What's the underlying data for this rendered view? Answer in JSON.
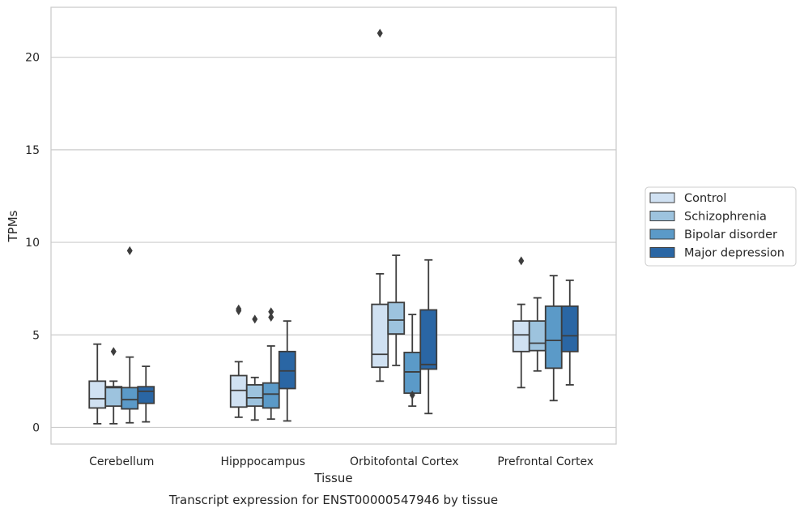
{
  "chart_data": {
    "type": "boxplot",
    "caption": "Transcript expression for ENST00000547946 by tissue",
    "xlabel": "Tissue",
    "ylabel": "TPMs",
    "ylim": [
      -0.9,
      22.7
    ],
    "yticks": [
      0,
      5,
      10,
      15,
      20
    ],
    "grid": "horizontal",
    "legend_position": "right",
    "categories": [
      "Cerebellum",
      "Hipppocampus",
      "Orbitofontal Cortex",
      "Prefrontal Cortex"
    ],
    "series": [
      {
        "name": "Control",
        "color": "#d0e1f2",
        "boxes": [
          {
            "whislo": 0.2,
            "q1": 1.05,
            "med": 1.55,
            "q3": 2.5,
            "whishi": 4.5,
            "fliers": []
          },
          {
            "whislo": 0.55,
            "q1": 1.1,
            "med": 2.0,
            "q3": 2.8,
            "whishi": 3.55,
            "fliers": [
              6.3,
              6.4
            ]
          },
          {
            "whislo": 2.5,
            "q1": 3.25,
            "med": 3.95,
            "q3": 6.65,
            "whishi": 8.3,
            "fliers": [
              21.3
            ]
          },
          {
            "whislo": 2.15,
            "q1": 4.1,
            "med": 5.0,
            "q3": 5.75,
            "whishi": 6.65,
            "fliers": [
              9.0
            ]
          }
        ]
      },
      {
        "name": "Schizophrenia",
        "color": "#9dc3de",
        "boxes": [
          {
            "whislo": 0.2,
            "q1": 1.15,
            "med": 2.15,
            "q3": 2.2,
            "whishi": 2.5,
            "fliers": [
              4.1
            ]
          },
          {
            "whislo": 0.4,
            "q1": 1.15,
            "med": 1.6,
            "q3": 2.3,
            "whishi": 2.7,
            "fliers": [
              5.85
            ]
          },
          {
            "whislo": 3.35,
            "q1": 5.05,
            "med": 5.8,
            "q3": 6.75,
            "whishi": 9.3,
            "fliers": []
          },
          {
            "whislo": 3.05,
            "q1": 4.15,
            "med": 4.55,
            "q3": 5.75,
            "whishi": 7.0,
            "fliers": []
          }
        ]
      },
      {
        "name": "Bipolar disorder",
        "color": "#5b9ac8",
        "boxes": [
          {
            "whislo": 0.25,
            "q1": 1.0,
            "med": 1.5,
            "q3": 2.15,
            "whishi": 3.8,
            "fliers": [
              9.55
            ]
          },
          {
            "whislo": 0.45,
            "q1": 1.05,
            "med": 1.8,
            "q3": 2.4,
            "whishi": 4.4,
            "fliers": [
              5.95,
              6.25
            ]
          },
          {
            "whislo": 1.15,
            "q1": 1.85,
            "med": 3.0,
            "q3": 4.05,
            "whishi": 6.1,
            "fliers": [
              1.75
            ]
          },
          {
            "whislo": 1.45,
            "q1": 3.2,
            "med": 4.7,
            "q3": 6.55,
            "whishi": 8.2,
            "fliers": []
          }
        ]
      },
      {
        "name": "Major depression",
        "color": "#2a66a4",
        "boxes": [
          {
            "whislo": 0.3,
            "q1": 1.3,
            "med": 1.95,
            "q3": 2.2,
            "whishi": 3.3,
            "fliers": []
          },
          {
            "whislo": 0.35,
            "q1": 2.1,
            "med": 3.05,
            "q3": 4.1,
            "whishi": 5.75,
            "fliers": []
          },
          {
            "whislo": 0.75,
            "q1": 3.15,
            "med": 3.4,
            "q3": 6.35,
            "whishi": 9.05,
            "fliers": []
          },
          {
            "whislo": 2.3,
            "q1": 4.1,
            "med": 4.95,
            "q3": 6.55,
            "whishi": 7.95,
            "fliers": []
          }
        ]
      }
    ]
  }
}
